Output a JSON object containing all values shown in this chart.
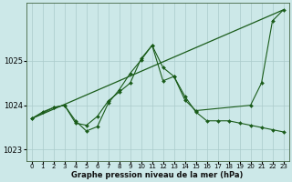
{
  "xlabel_label": "Graphe pression niveau de la mer (hPa)",
  "bg_color": "#cce8e8",
  "grid_color": "#aacaca",
  "line_color": "#1a5c1a",
  "xlim": [
    -0.5,
    23.5
  ],
  "ylim": [
    1022.75,
    1026.3
  ],
  "yticks": [
    1023,
    1024,
    1025
  ],
  "xticks": [
    0,
    1,
    2,
    3,
    4,
    5,
    6,
    7,
    8,
    9,
    10,
    11,
    12,
    13,
    14,
    15,
    16,
    17,
    18,
    19,
    20,
    21,
    22,
    23
  ],
  "series1_x": [
    0,
    1,
    2,
    3,
    4,
    5,
    6,
    7,
    8,
    9,
    10,
    11,
    12,
    13,
    14,
    15,
    16,
    17,
    18,
    19,
    20,
    21,
    22,
    23
  ],
  "series1_y": [
    1023.7,
    1023.85,
    1023.95,
    1024.0,
    1023.6,
    1023.55,
    1023.75,
    1024.1,
    1024.3,
    1024.5,
    1025.05,
    1025.35,
    1024.85,
    1024.65,
    1024.2,
    1023.85,
    1023.65,
    1023.65,
    1023.65,
    1023.6,
    1023.55,
    1023.5,
    1023.45,
    1023.4
  ],
  "series2_x": [
    0,
    2,
    3,
    4,
    5,
    6,
    7,
    8,
    9,
    10,
    11,
    12,
    13,
    14,
    15,
    20,
    21,
    22,
    23
  ],
  "series2_y": [
    1023.7,
    1023.95,
    1024.0,
    1023.65,
    1023.42,
    1023.52,
    1024.05,
    1024.35,
    1024.72,
    1025.02,
    1025.35,
    1024.55,
    1024.65,
    1024.12,
    1023.88,
    1024.0,
    1024.5,
    1025.9,
    1026.15
  ],
  "series3_x": [
    0,
    23
  ],
  "series3_y": [
    1023.7,
    1026.15
  ]
}
